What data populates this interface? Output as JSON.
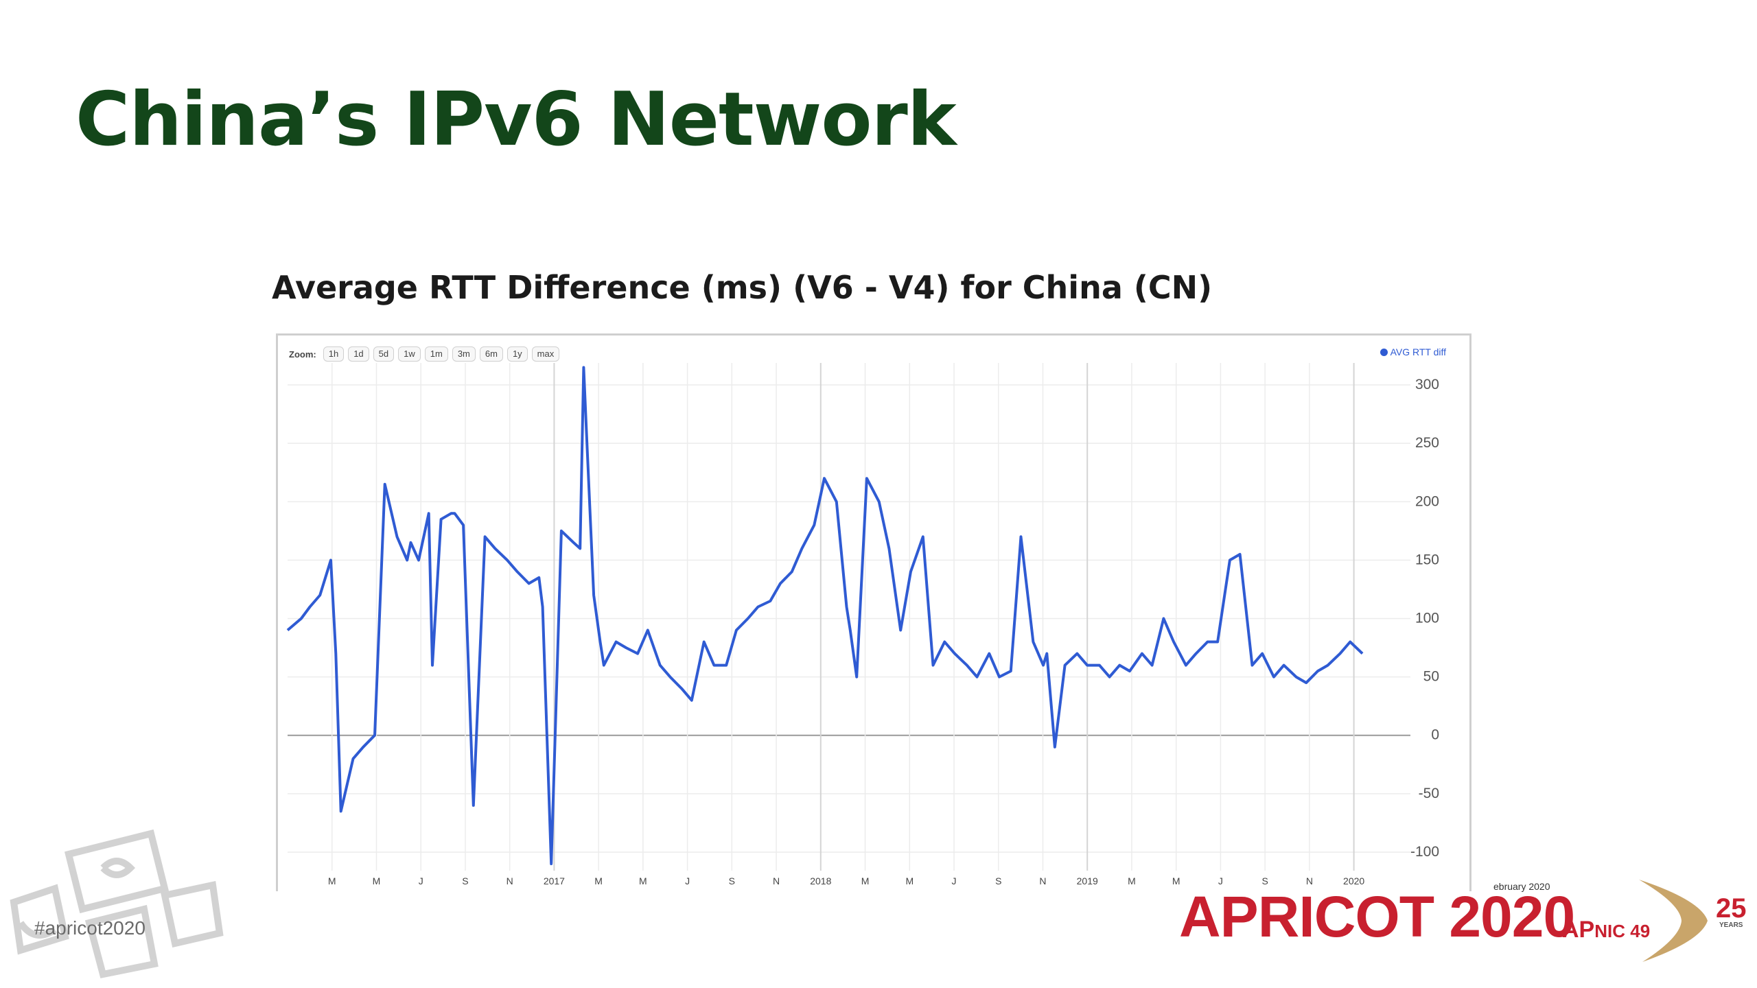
{
  "slide": {
    "title": "China’s IPv6 Network",
    "hashtag": "#apricot2020",
    "date_fragment": "ebruary 2020",
    "event_name": "APRICOT 2020",
    "apnic_prefix": "AP",
    "apnic_suffix": "NIC 49",
    "anniversary": "25",
    "anniversary_sub": "YEARS"
  },
  "colors": {
    "title": "#13461a",
    "series": "#2f5bd3",
    "brand_red": "#c8202f",
    "brand_gold": "#c9a56a"
  },
  "chart_data": {
    "type": "line",
    "title": "Average RTT Difference (ms) (V6 - V4) for China (CN)",
    "zoom_label": "Zoom:",
    "zoom_buttons": [
      "1h",
      "1d",
      "5d",
      "1w",
      "1m",
      "3m",
      "6m",
      "1y",
      "max"
    ],
    "legend": "AVG RTT diff",
    "legend_position": "top-right",
    "grid": true,
    "y_axis_side": "right",
    "ylim": [
      -110,
      310
    ],
    "y_ticks": [
      300,
      250,
      200,
      150,
      100,
      50,
      0,
      -50,
      -100
    ],
    "x_tick_labels": [
      "M",
      "M",
      "J",
      "S",
      "N",
      "2017",
      "M",
      "M",
      "J",
      "S",
      "N",
      "2018",
      "M",
      "M",
      "J",
      "S",
      "N",
      "2019",
      "M",
      "M",
      "J",
      "S",
      "N",
      "2020"
    ],
    "x_range": [
      "2016-01",
      "2020-02"
    ],
    "series": [
      {
        "name": "AVG RTT diff",
        "x": [
          "2016-01",
          "2016-01-20",
          "2016-02",
          "2016-02-15",
          "2016-03",
          "2016-03-08",
          "2016-03-15",
          "2016-04",
          "2016-04-15",
          "2016-05",
          "2016-05-15",
          "2016-06",
          "2016-06-15",
          "2016-06-20",
          "2016-07",
          "2016-07-15",
          "2016-07-20",
          "2016-08",
          "2016-08-15",
          "2016-08-20",
          "2016-09",
          "2016-09-15",
          "2016-10",
          "2016-10-15",
          "2016-11",
          "2016-11-15",
          "2016-12",
          "2016-12-15",
          "2016-12-20",
          "2017-01",
          "2017-01-15",
          "2017-02",
          "2017-02-10",
          "2017-02-15",
          "2017-02-20",
          "2017-03",
          "2017-03-10",
          "2017-03-15",
          "2017-04",
          "2017-04-15",
          "2017-05",
          "2017-05-15",
          "2017-06",
          "2017-06-15",
          "2017-07",
          "2017-07-15",
          "2017-08",
          "2017-08-15",
          "2017-09",
          "2017-09-15",
          "2017-10",
          "2017-10-15",
          "2017-11",
          "2017-11-15",
          "2017-12",
          "2017-12-15",
          "2018-01",
          "2018-01-15",
          "2018-02",
          "2018-02-15",
          "2018-02-20",
          "2018-03",
          "2018-03-15",
          "2018-04",
          "2018-04-15",
          "2018-05",
          "2018-05-15",
          "2018-06",
          "2018-06-15",
          "2018-07",
          "2018-07-15",
          "2018-08",
          "2018-08-15",
          "2018-09",
          "2018-09-15",
          "2018-10",
          "2018-10-15",
          "2018-11",
          "2018-11-15",
          "2018-11-20",
          "2018-12",
          "2018-12-15",
          "2019-01",
          "2019-01-15",
          "2019-02",
          "2019-02-15",
          "2019-03",
          "2019-03-15",
          "2019-04",
          "2019-04-15",
          "2019-05",
          "2019-05-15",
          "2019-06",
          "2019-06-15",
          "2019-07",
          "2019-07-15",
          "2019-08",
          "2019-08-15",
          "2019-09",
          "2019-09-15",
          "2019-10",
          "2019-10-15",
          "2019-11",
          "2019-11-15",
          "2019-12",
          "2019-12-15",
          "2020-01",
          "2020-01-15",
          "2020-02"
        ],
        "y": [
          90,
          100,
          110,
          120,
          150,
          70,
          -65,
          -20,
          -10,
          0,
          215,
          170,
          150,
          165,
          150,
          190,
          60,
          185,
          190,
          190,
          180,
          -60,
          170,
          160,
          150,
          140,
          130,
          135,
          110,
          -110,
          175,
          165,
          160,
          315,
          245,
          120,
          80,
          60,
          80,
          75,
          70,
          90,
          60,
          50,
          40,
          30,
          80,
          60,
          60,
          90,
          100,
          110,
          115,
          130,
          140,
          160,
          180,
          220,
          200,
          110,
          90,
          50,
          220,
          200,
          160,
          90,
          140,
          170,
          60,
          80,
          70,
          60,
          50,
          70,
          50,
          55,
          170,
          80,
          60,
          70,
          -10,
          60,
          70,
          60,
          60,
          50,
          60,
          55,
          70,
          60,
          100,
          80,
          60,
          70,
          80,
          80,
          150,
          155,
          60,
          70,
          50,
          60,
          50,
          45,
          55,
          60,
          70,
          80,
          70
        ]
      }
    ]
  }
}
